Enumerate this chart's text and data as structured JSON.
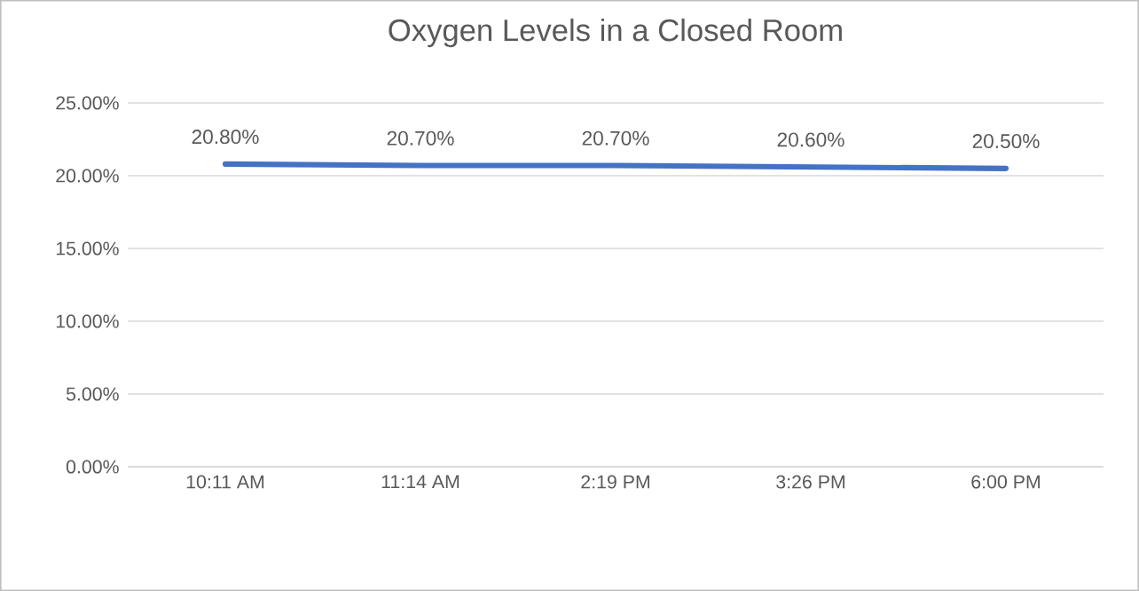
{
  "chart_data": {
    "type": "line",
    "title": "Oxygen Levels in a Closed Room",
    "categories": [
      "10:11 AM",
      "11:14 AM",
      "2:19 PM",
      "3:26 PM",
      "6:00 PM"
    ],
    "values": [
      20.8,
      20.7,
      20.7,
      20.6,
      20.5
    ],
    "value_labels": [
      "20.80%",
      "20.70%",
      "20.70%",
      "20.60%",
      "20.50%"
    ],
    "color": "#4472c4",
    "marker": "none",
    "line_style": "solid",
    "grid": "y",
    "ylim": [
      0,
      25
    ],
    "yticks": [
      {
        "value": 0,
        "label": "0.00%"
      },
      {
        "value": 5,
        "label": "5.00%"
      },
      {
        "value": 10,
        "label": "10.00%"
      },
      {
        "value": 15,
        "label": "15.00%"
      },
      {
        "value": 20,
        "label": "20.00%"
      },
      {
        "value": 25,
        "label": "25.00%"
      }
    ]
  }
}
